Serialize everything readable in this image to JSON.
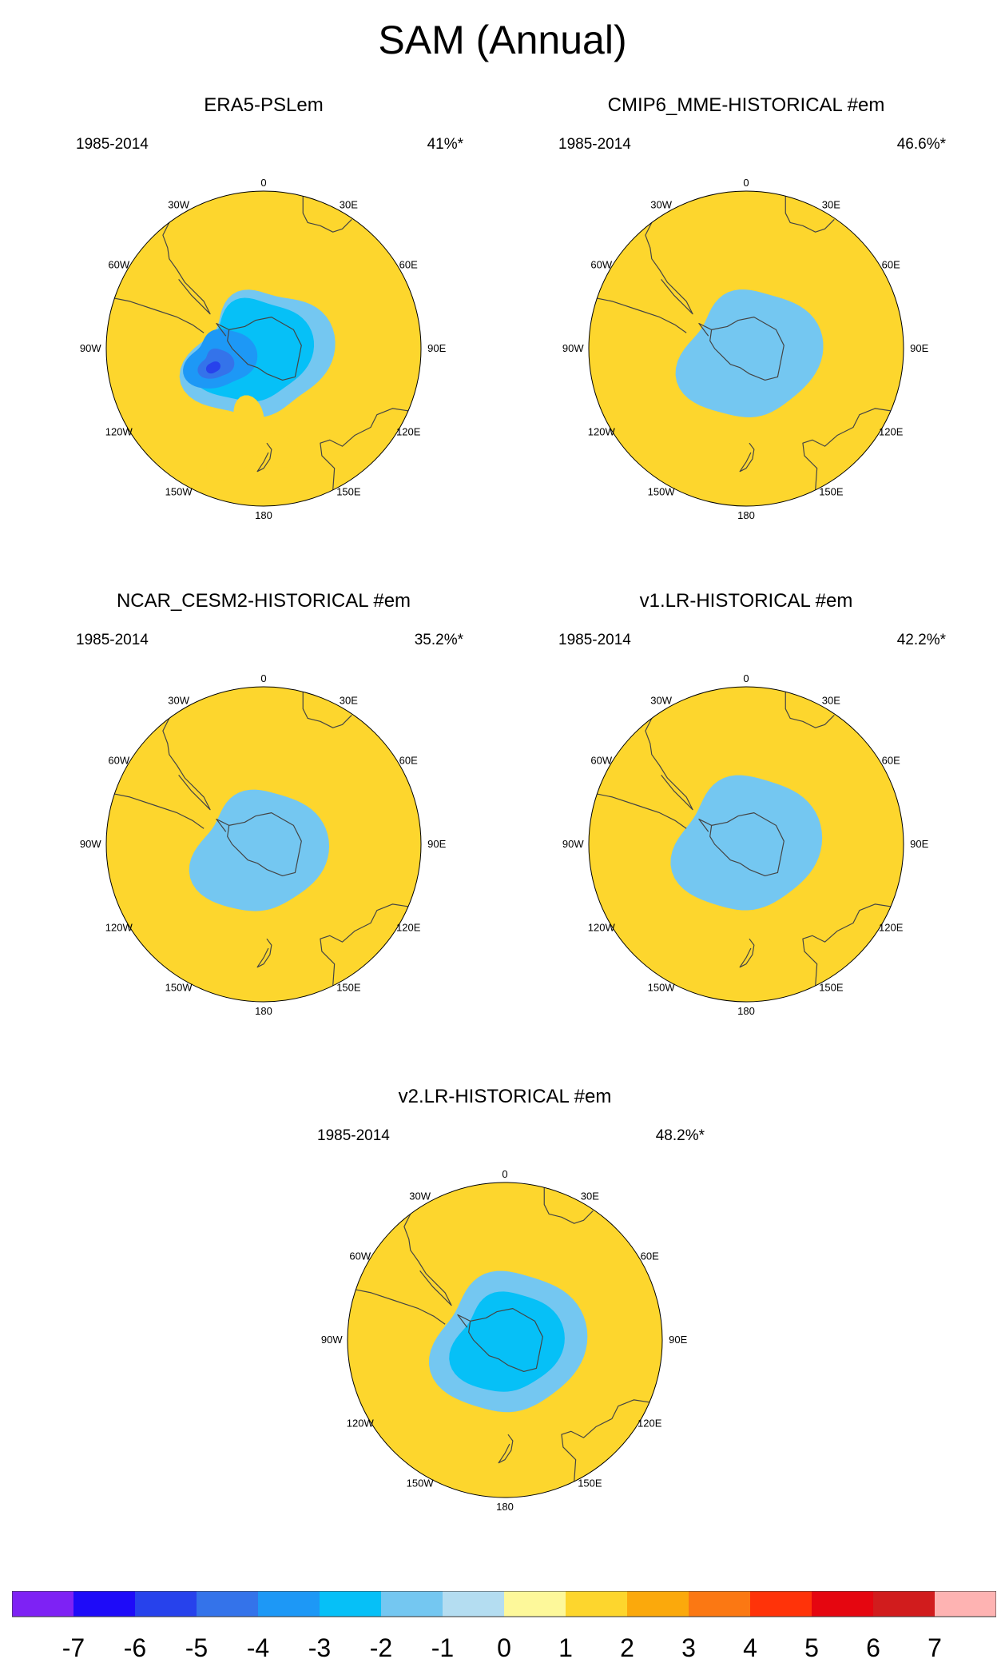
{
  "title": "SAM (Annual)",
  "period": "1985-2014",
  "longitude_labels": {
    "n": "0",
    "ne": "30E",
    "e1": "60E",
    "e": "90E",
    "e2": "120E",
    "se": "150E",
    "s": "180",
    "sw": "150W",
    "w2": "120W",
    "w": "90W",
    "w1": "60W",
    "nw": "30W"
  },
  "panels": [
    {
      "title": "ERA5-PSLem",
      "percent": "41%*",
      "shading": [
        {
          "level": -1,
          "shape": "blob",
          "cx": -0.02,
          "cy": -0.04,
          "r": 0.42,
          "amp": [
            0.14,
            0.05,
            0.09,
            0.04
          ]
        },
        {
          "level": -2,
          "shape": "blob",
          "cx": -0.06,
          "cy": -0.02,
          "r": 0.34,
          "amp": [
            0.12,
            0.06,
            0.08,
            0.03
          ]
        },
        {
          "level": -3,
          "shape": "blob",
          "cx": -0.27,
          "cy": -0.07,
          "r": 0.2,
          "amp": [
            0.18,
            0.08,
            0.05,
            0.02
          ]
        },
        {
          "level": -4,
          "shape": "blob",
          "cx": -0.3,
          "cy": -0.1,
          "r": 0.1,
          "amp": [
            0.15,
            0.1,
            0.05,
            0.02
          ]
        },
        {
          "level": -5,
          "shape": "blob",
          "cx": -0.32,
          "cy": -0.12,
          "r": 0.04,
          "amp": [
            0.2,
            0,
            0,
            0
          ]
        },
        {
          "level": 1,
          "shape": "blob",
          "cx": -0.07,
          "cy": -0.6,
          "r": 0.2,
          "amp": [
            0.12,
            0.6,
            0.05,
            0.02
          ]
        }
      ]
    },
    {
      "title": "CMIP6_MME-HISTORICAL  #em",
      "percent": "46.6%*",
      "shading": [
        {
          "level": -1,
          "shape": "blob",
          "cx": 0.03,
          "cy": -0.04,
          "r": 0.42,
          "amp": [
            0.1,
            0.04,
            0.06,
            0.02
          ]
        }
      ]
    },
    {
      "title": "NCAR_CESM2-HISTORICAL  #em",
      "percent": "35.2%*",
      "shading": [
        {
          "level": -1,
          "shape": "blob",
          "cx": -0.02,
          "cy": -0.05,
          "r": 0.4,
          "amp": [
            0.1,
            0.05,
            0.05,
            0.02
          ]
        }
      ]
    },
    {
      "title": "v1.LR-HISTORICAL  #em",
      "percent": "42.2%*",
      "shading": [
        {
          "level": -1,
          "shape": "blob",
          "cx": 0.01,
          "cy": 0,
          "r": 0.44,
          "amp": [
            0.08,
            0.04,
            0.05,
            0.02
          ]
        }
      ]
    },
    {
      "title": "v2.LR-HISTORICAL  #em",
      "percent": "48.2%*",
      "shading": [
        {
          "level": -1,
          "shape": "blob",
          "cx": 0.03,
          "cy": -0.02,
          "r": 0.46,
          "amp": [
            0.08,
            0.04,
            0.05,
            0.02
          ]
        },
        {
          "level": -2,
          "shape": "blob",
          "cx": 0.02,
          "cy": -0.02,
          "r": 0.33,
          "amp": [
            0.1,
            0.05,
            0.05,
            0.02
          ]
        }
      ]
    }
  ],
  "colorbar": {
    "labels": [
      "-7",
      "-6",
      "-5",
      "-4",
      "-3",
      "-2",
      "-1",
      "0",
      "1",
      "2",
      "3",
      "4",
      "5",
      "6",
      "7"
    ],
    "colors": [
      "#7e22f4",
      "#1e0bf8",
      "#2742ec",
      "#3473ea",
      "#1d98f6",
      "#06c0f7",
      "#74c7f1",
      "#b4ddf1",
      "#fdf89a",
      "#fdd62d",
      "#fba90c",
      "#fb7813",
      "#ff3309",
      "#e50610",
      "#d11c1d",
      "#feb3b2"
    ]
  }
}
